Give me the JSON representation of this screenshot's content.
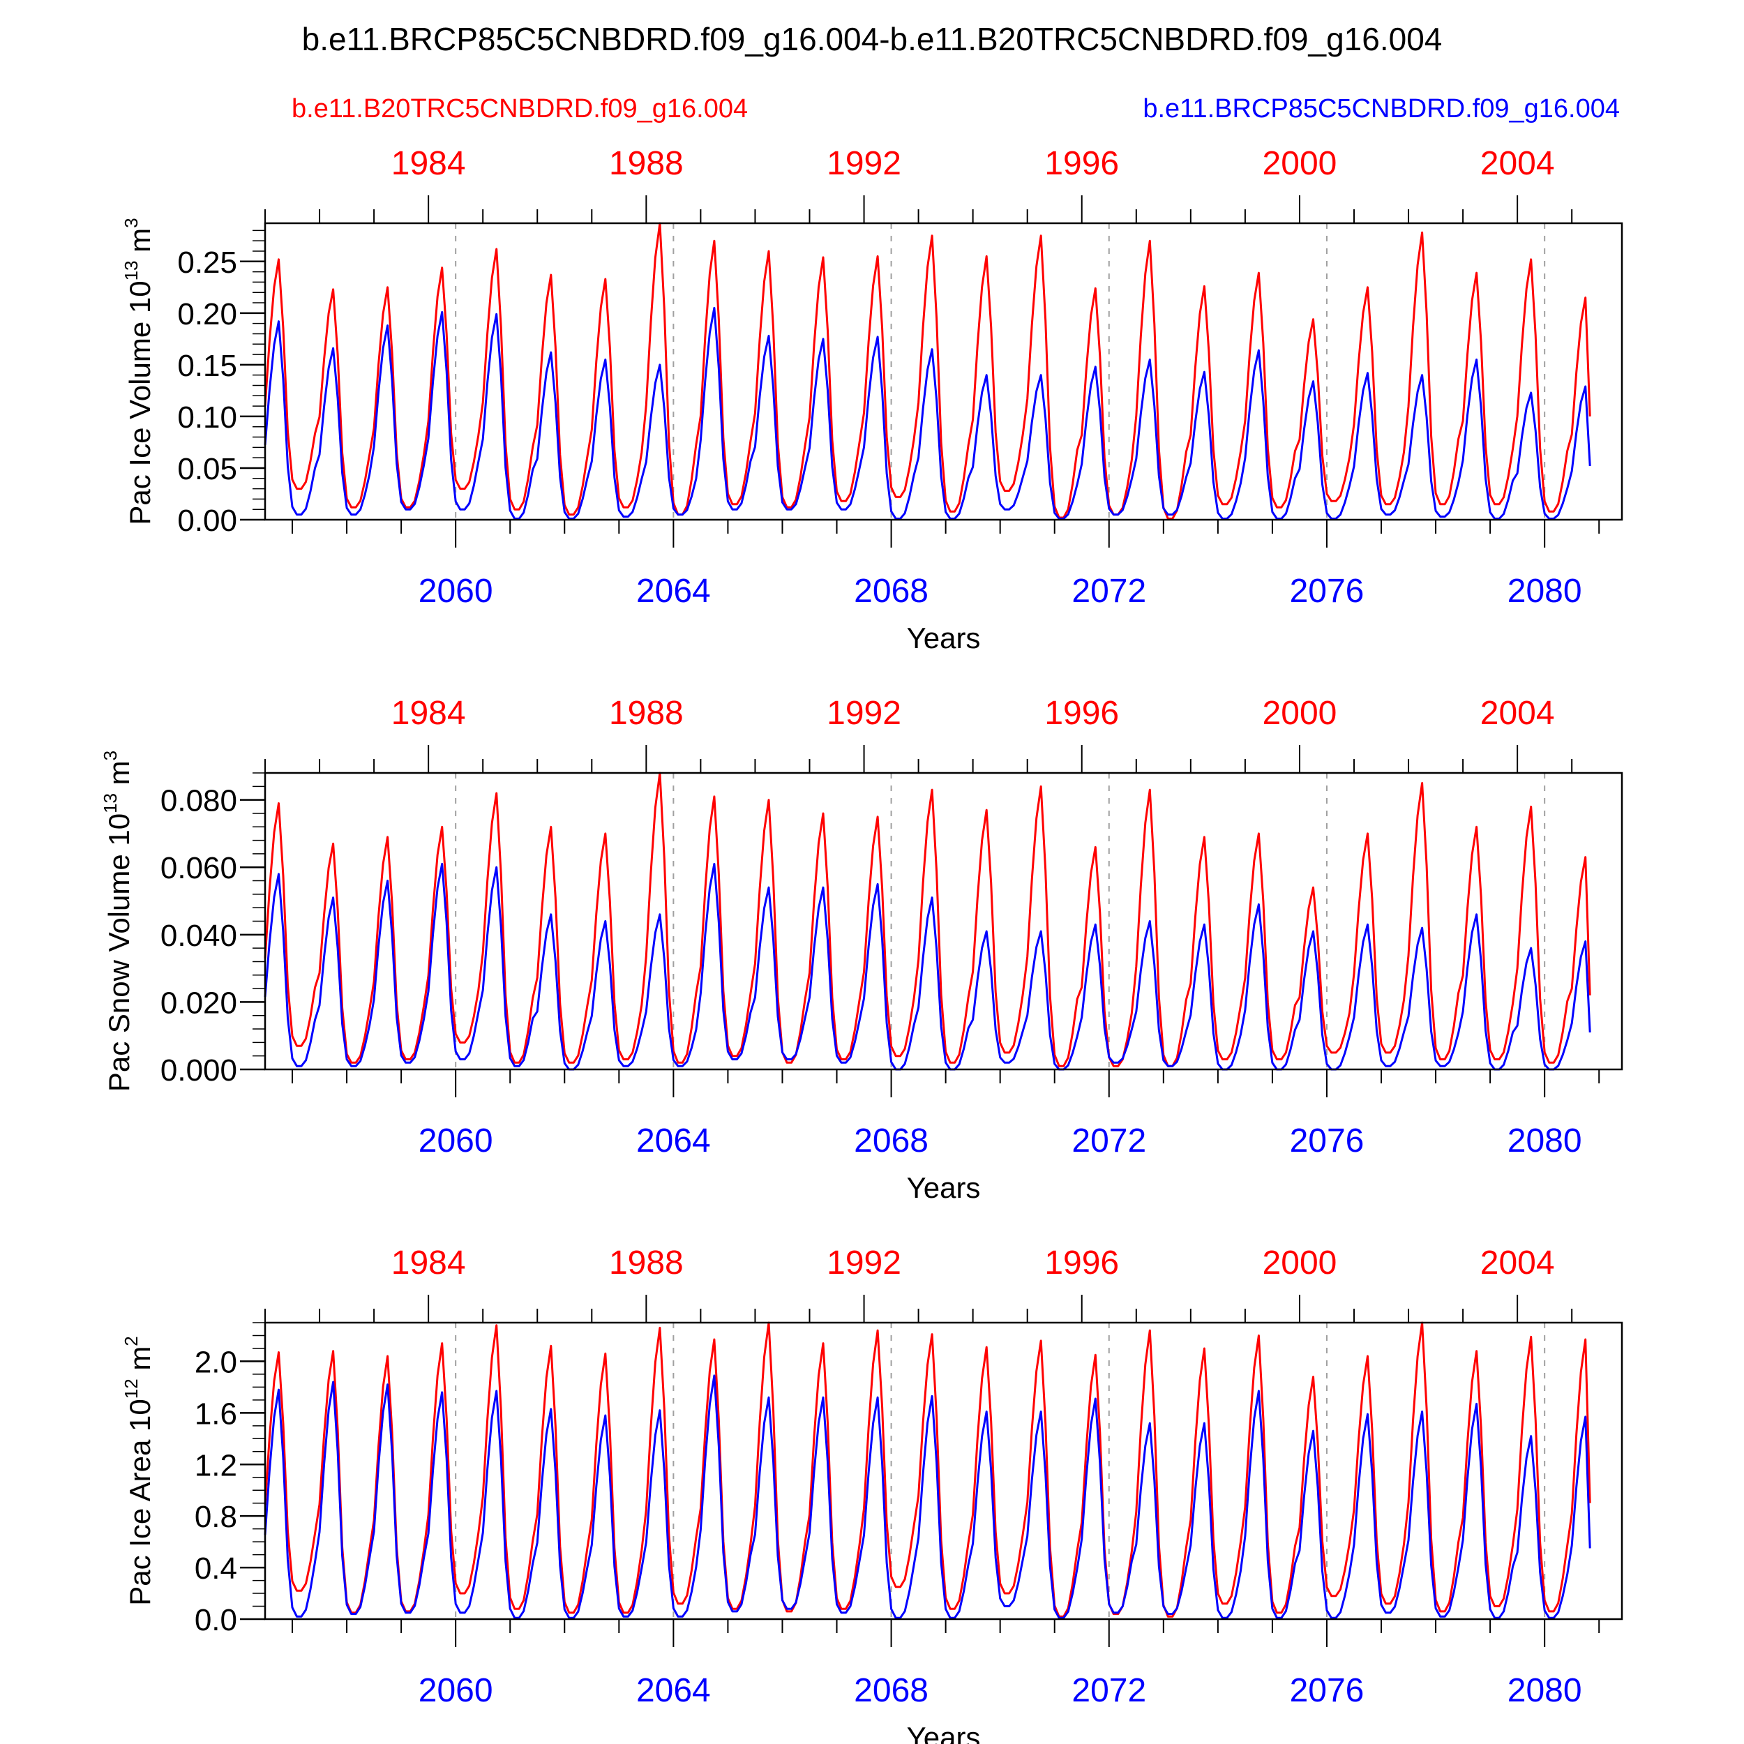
{
  "title": "b.e11.BRCP85C5CNBDRD.f09_g16.004-b.e11.B20TRC5CNBDRD.f09_g16.004",
  "legend": {
    "left_label": "b.e11.B20TRC5CNBDRD.f09_g16.004",
    "left_color": "#ff0000",
    "right_label": "b.e11.BRCP85C5CNBDRD.f09_g16.004",
    "right_color": "#0000ff"
  },
  "colors": {
    "red": "#ff0000",
    "blue": "#0000ff",
    "axis": "#000000",
    "grid": "#a0a0a0"
  },
  "chart_data": [
    {
      "type": "line",
      "ylabel": "Pac Ice Volume 10",
      "ylabel_exp": "13",
      "ylabel_unit": " m",
      "ylabel_unit_exp": "3",
      "xlabel": "Years",
      "ylim": [
        0,
        0.287
      ],
      "yticks": [
        0.0,
        0.05,
        0.1,
        0.15,
        0.2,
        0.25
      ],
      "ytick_labels": [
        "0.00",
        "0.05",
        "0.10",
        "0.15",
        "0.20",
        "0.25"
      ],
      "yminor_step": 0.01,
      "x_blue_ticks": [
        2060,
        2064,
        2068,
        2072,
        2076,
        2080
      ],
      "x_red_ticks": [
        1984,
        1988,
        1992,
        1996,
        2000,
        2004
      ],
      "x_range_years": [
        2056.5,
        2081.42
      ],
      "series": [
        {
          "name": "b.e11.B20TRC5CNBDRD.f09_g16.004",
          "color": "#ff0000",
          "peaks": [
            0.252,
            0.223,
            0.225,
            0.244,
            0.262,
            0.237,
            0.233,
            0.287,
            0.27,
            0.26,
            0.254,
            0.255,
            0.275,
            0.255,
            0.275,
            0.224,
            0.27,
            0.226,
            0.239,
            0.194,
            0.225,
            0.278,
            0.239,
            0.252,
            0.215
          ],
          "mins": [
            0.03,
            0.012,
            0.012,
            0.03,
            0.01,
            0.005,
            0.012,
            0.005,
            0.015,
            0.012,
            0.018,
            0.022,
            0.008,
            0.028,
            0.002,
            0.005,
            0.001,
            0.015,
            0.012,
            0.018,
            0.015,
            0.015,
            0.015,
            0.008,
            0.1
          ]
        },
        {
          "name": "b.e11.BRCP85C5CNBDRD.f09_g16.004",
          "color": "#0000ff",
          "peaks": [
            0.192,
            0.166,
            0.188,
            0.201,
            0.199,
            0.162,
            0.155,
            0.15,
            0.205,
            0.178,
            0.175,
            0.177,
            0.165,
            0.14,
            0.14,
            0.148,
            0.155,
            0.143,
            0.164,
            0.134,
            0.142,
            0.14,
            0.155,
            0.123,
            0.129
          ],
          "mins": [
            0.005,
            0.005,
            0.01,
            0.01,
            0.001,
            0.001,
            0.003,
            0.005,
            0.01,
            0.01,
            0.01,
            0.001,
            0.001,
            0.01,
            0.001,
            0.005,
            0.005,
            0.001,
            0.001,
            0.001,
            0.005,
            0.003,
            0.001,
            0.001,
            0.052
          ]
        }
      ]
    },
    {
      "type": "line",
      "ylabel": "Pac Snow Volume 10",
      "ylabel_exp": "13",
      "ylabel_unit": " m",
      "ylabel_unit_exp": "3",
      "xlabel": "Years",
      "ylim": [
        0,
        0.088
      ],
      "yticks": [
        0.0,
        0.02,
        0.04,
        0.06,
        0.08
      ],
      "ytick_labels": [
        "0.000",
        "0.020",
        "0.040",
        "0.060",
        "0.080"
      ],
      "yminor_step": 0.004,
      "x_blue_ticks": [
        2060,
        2064,
        2068,
        2072,
        2076,
        2080
      ],
      "x_red_ticks": [
        1984,
        1988,
        1992,
        1996,
        2000,
        2004
      ],
      "x_range_years": [
        2056.5,
        2081.42
      ],
      "series": [
        {
          "name": "b.e11.B20TRC5CNBDRD.f09_g16.004",
          "color": "#ff0000",
          "peaks": [
            0.079,
            0.067,
            0.069,
            0.072,
            0.082,
            0.072,
            0.07,
            0.088,
            0.081,
            0.08,
            0.076,
            0.075,
            0.083,
            0.077,
            0.084,
            0.066,
            0.083,
            0.069,
            0.07,
            0.054,
            0.07,
            0.085,
            0.072,
            0.078,
            0.063
          ],
          "mins": [
            0.007,
            0.002,
            0.003,
            0.008,
            0.002,
            0.002,
            0.003,
            0.002,
            0.004,
            0.002,
            0.003,
            0.004,
            0.002,
            0.005,
            0.001,
            0.001,
            0.001,
            0.003,
            0.003,
            0.005,
            0.005,
            0.003,
            0.003,
            0.002,
            0.022
          ]
        },
        {
          "name": "b.e11.BRCP85C5CNBDRD.f09_g16.004",
          "color": "#0000ff",
          "peaks": [
            0.058,
            0.051,
            0.056,
            0.061,
            0.06,
            0.046,
            0.044,
            0.046,
            0.061,
            0.054,
            0.054,
            0.055,
            0.051,
            0.041,
            0.041,
            0.043,
            0.044,
            0.043,
            0.049,
            0.041,
            0.043,
            0.042,
            0.046,
            0.036,
            0.038
          ],
          "mins": [
            0.001,
            0.001,
            0.002,
            0.003,
            0.001,
            0.0,
            0.001,
            0.001,
            0.003,
            0.003,
            0.002,
            0.0,
            0.0,
            0.002,
            0.0,
            0.002,
            0.001,
            0.0,
            0.0,
            0.0,
            0.001,
            0.001,
            0.0,
            0.0,
            0.011
          ]
        }
      ]
    },
    {
      "type": "line",
      "ylabel": "Pac Ice Area 10",
      "ylabel_exp": "12",
      "ylabel_unit": " m",
      "ylabel_unit_exp": "2",
      "xlabel": "Years",
      "ylim": [
        0,
        2.3
      ],
      "yticks": [
        0.0,
        0.4,
        0.8,
        1.2,
        1.6,
        2.0
      ],
      "ytick_labels": [
        "0.0",
        "0.4",
        "0.8",
        "1.2",
        "1.6",
        "2.0"
      ],
      "yminor_step": 0.1,
      "x_blue_ticks": [
        2060,
        2064,
        2068,
        2072,
        2076,
        2080
      ],
      "x_red_ticks": [
        1984,
        1988,
        1992,
        1996,
        2000,
        2004
      ],
      "x_range_years": [
        2056.5,
        2081.42
      ],
      "series": [
        {
          "name": "b.e11.B20TRC5CNBDRD.f09_g16.004",
          "color": "#ff0000",
          "peaks": [
            2.07,
            2.08,
            2.04,
            2.14,
            2.28,
            2.12,
            2.06,
            2.26,
            2.17,
            2.3,
            2.14,
            2.24,
            2.21,
            2.11,
            2.16,
            2.05,
            2.24,
            2.1,
            2.2,
            1.88,
            2.04,
            2.3,
            2.08,
            2.19,
            2.17
          ],
          "mins": [
            0.22,
            0.05,
            0.06,
            0.2,
            0.08,
            0.05,
            0.05,
            0.12,
            0.08,
            0.06,
            0.08,
            0.25,
            0.08,
            0.2,
            0.02,
            0.04,
            0.02,
            0.12,
            0.05,
            0.18,
            0.12,
            0.06,
            0.1,
            0.06,
            0.9
          ]
        },
        {
          "name": "b.e11.BRCP85C5CNBDRD.f09_g16.004",
          "color": "#0000ff",
          "peaks": [
            1.78,
            1.84,
            1.82,
            1.76,
            1.77,
            1.63,
            1.58,
            1.62,
            1.89,
            1.72,
            1.72,
            1.72,
            1.73,
            1.61,
            1.61,
            1.71,
            1.52,
            1.52,
            1.77,
            1.46,
            1.59,
            1.61,
            1.67,
            1.42,
            1.57
          ],
          "mins": [
            0.02,
            0.04,
            0.05,
            0.05,
            0.01,
            0.01,
            0.02,
            0.02,
            0.06,
            0.08,
            0.05,
            0.01,
            0.01,
            0.1,
            0.01,
            0.05,
            0.04,
            0.01,
            0.01,
            0.01,
            0.05,
            0.02,
            0.01,
            0.01,
            0.55
          ]
        }
      ]
    }
  ]
}
